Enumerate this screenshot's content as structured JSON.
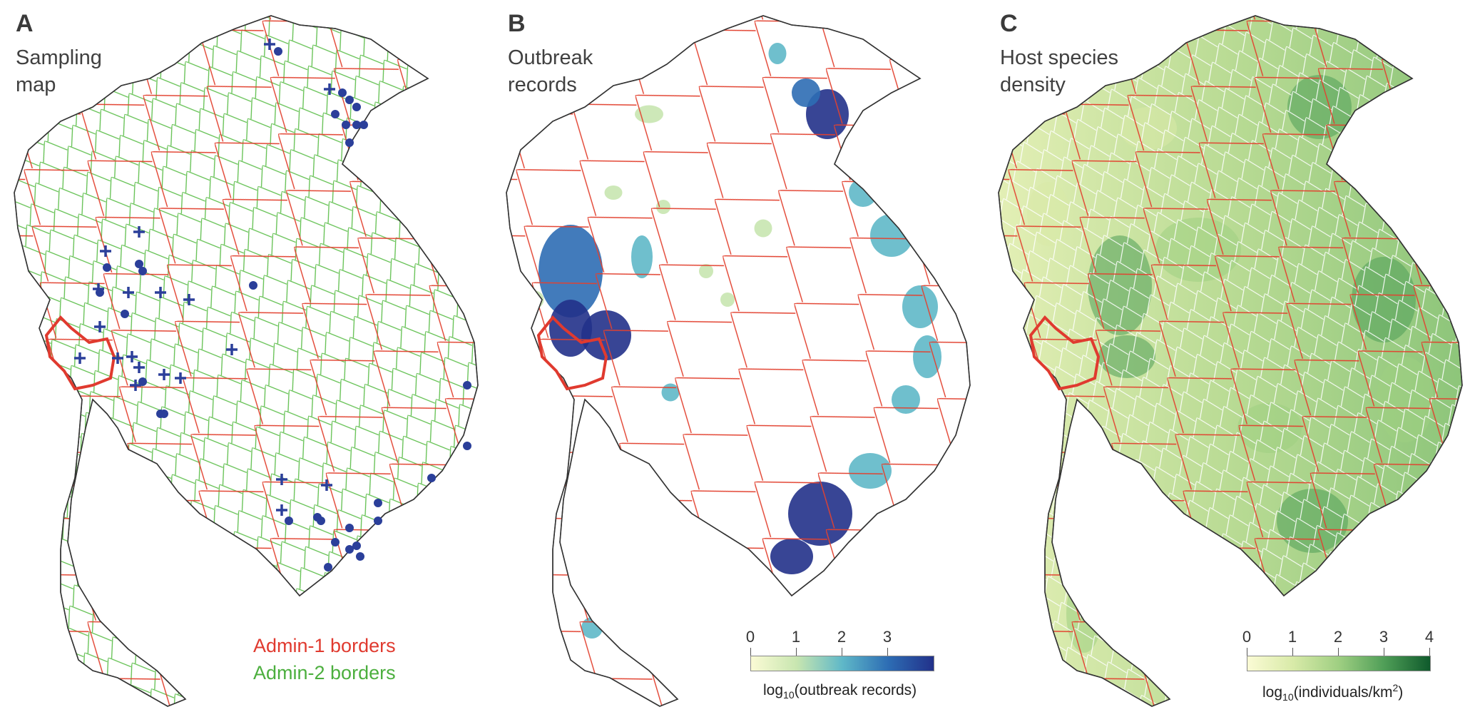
{
  "panels": [
    {
      "letter": "A",
      "title_lines": [
        "Sampling",
        "map"
      ]
    },
    {
      "letter": "B",
      "title_lines": [
        "Outbreak",
        "records"
      ]
    },
    {
      "letter": "C",
      "title_lines": [
        "Host species",
        "density"
      ]
    }
  ],
  "legend": {
    "admin1": "Admin-1 borders",
    "admin2": "Admin-2 borders",
    "admin1_color": "#e03a2f",
    "admin2_color": "#4caf3e"
  },
  "colorbar_b": {
    "ticks": [
      "0",
      "1",
      "2",
      "3"
    ],
    "label_prefix": "log",
    "label_sub": "10",
    "label_suffix": "(outbreak records)",
    "colors": [
      "#fbfbd5",
      "#c8e6b0",
      "#5fb8c8",
      "#2d6db4",
      "#22318a"
    ]
  },
  "colorbar_c": {
    "ticks": [
      "0",
      "1",
      "2",
      "3",
      "4"
    ],
    "label_prefix": "log",
    "label_sub": "10",
    "label_mid": "(individuals/km",
    "label_sup": "2",
    "label_suffix": ")",
    "colors": [
      "#fbfbd5",
      "#d8eaa8",
      "#9fcf82",
      "#4f9e57",
      "#0f5a2c"
    ]
  },
  "icons": {
    "highlight_region": "highlight-region-outline",
    "sample_cross": "plus-marker-icon",
    "sample_dot": "dot-marker-icon"
  }
}
